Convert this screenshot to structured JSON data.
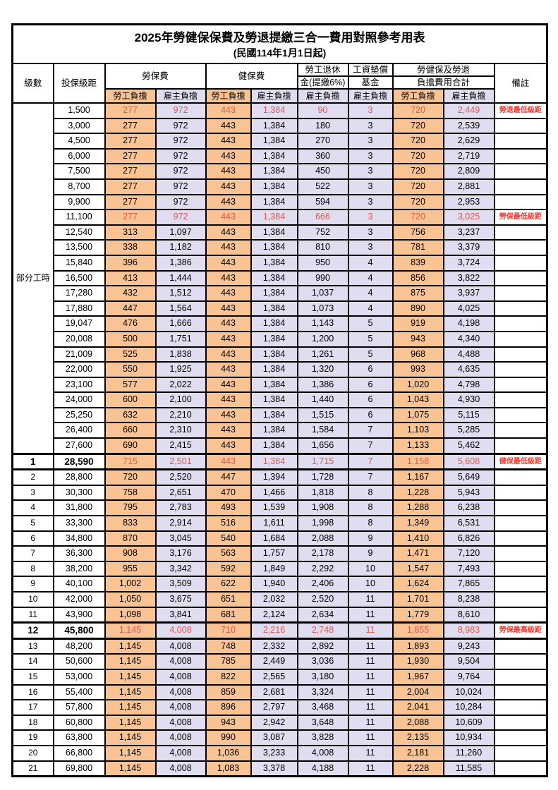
{
  "title": {
    "line1": "2025年勞健保保費及勞退提繳三合一費用對照參考用表",
    "line2": "(民國114年1月1日起)"
  },
  "headers": {
    "level": "級數",
    "bracket": "投保級距",
    "labor_insurance": "勞保費",
    "health_insurance": "健保費",
    "pension_line1": "勞工退休",
    "pension_line2": "金(提繳6%)",
    "wage_fund_line1": "工資墊償",
    "wage_fund_line2": "基金",
    "total_line1": "勞健保及勞退",
    "total_line2": "負擔費用合計",
    "remark": "備註",
    "sub": [
      "勞工負擔",
      "雇主負擔",
      "勞工負擔",
      "雇主負擔",
      "雇主負擔",
      "雇主負擔",
      "勞工負擔",
      "雇主負擔"
    ]
  },
  "part_time_label": "部分工時",
  "part_time_rowspan": 23,
  "colors": {
    "employee_fill": "#FAC393",
    "employer_fill": "#DFDDEF",
    "highlight_value": "#DD5A50",
    "remark_red": "#FF362E"
  },
  "rows": [
    {
      "level": "",
      "bracket": "1,500",
      "values": [
        "277",
        "972",
        "443",
        "1,384",
        "90",
        "3",
        "720",
        "2,449"
      ],
      "remark": "勞退最低級距",
      "red": true,
      "bold": false
    },
    {
      "level": "",
      "bracket": "3,000",
      "values": [
        "277",
        "972",
        "443",
        "1,384",
        "180",
        "3",
        "720",
        "2,539"
      ],
      "remark": "",
      "red": false,
      "bold": false
    },
    {
      "level": "",
      "bracket": "4,500",
      "values": [
        "277",
        "972",
        "443",
        "1,384",
        "270",
        "3",
        "720",
        "2,629"
      ],
      "remark": "",
      "red": false,
      "bold": false
    },
    {
      "level": "",
      "bracket": "6,000",
      "values": [
        "277",
        "972",
        "443",
        "1,384",
        "360",
        "3",
        "720",
        "2,719"
      ],
      "remark": "",
      "red": false,
      "bold": false
    },
    {
      "level": "",
      "bracket": "7,500",
      "values": [
        "277",
        "972",
        "443",
        "1,384",
        "450",
        "3",
        "720",
        "2,809"
      ],
      "remark": "",
      "red": false,
      "bold": false
    },
    {
      "level": "",
      "bracket": "8,700",
      "values": [
        "277",
        "972",
        "443",
        "1,384",
        "522",
        "3",
        "720",
        "2,881"
      ],
      "remark": "",
      "red": false,
      "bold": false
    },
    {
      "level": "",
      "bracket": "9,900",
      "values": [
        "277",
        "972",
        "443",
        "1,384",
        "594",
        "3",
        "720",
        "2,953"
      ],
      "remark": "",
      "red": false,
      "bold": false
    },
    {
      "level": "",
      "bracket": "11,100",
      "values": [
        "277",
        "972",
        "443",
        "1,384",
        "666",
        "3",
        "720",
        "3,025"
      ],
      "remark": "勞保最低級距",
      "red": true,
      "bold": false
    },
    {
      "level": "",
      "bracket": "12,540",
      "values": [
        "313",
        "1,097",
        "443",
        "1,384",
        "752",
        "3",
        "756",
        "3,237"
      ],
      "remark": "",
      "red": false,
      "bold": false
    },
    {
      "level": "",
      "bracket": "13,500",
      "values": [
        "338",
        "1,182",
        "443",
        "1,384",
        "810",
        "3",
        "781",
        "3,379"
      ],
      "remark": "",
      "red": false,
      "bold": false
    },
    {
      "level": "",
      "bracket": "15,840",
      "values": [
        "396",
        "1,386",
        "443",
        "1,384",
        "950",
        "4",
        "839",
        "3,724"
      ],
      "remark": "",
      "red": false,
      "bold": false
    },
    {
      "level": "",
      "bracket": "16,500",
      "values": [
        "413",
        "1,444",
        "443",
        "1,384",
        "990",
        "4",
        "856",
        "3,822"
      ],
      "remark": "",
      "red": false,
      "bold": false
    },
    {
      "level": "",
      "bracket": "17,280",
      "values": [
        "432",
        "1,512",
        "443",
        "1,384",
        "1,037",
        "4",
        "875",
        "3,937"
      ],
      "remark": "",
      "red": false,
      "bold": false
    },
    {
      "level": "",
      "bracket": "17,880",
      "values": [
        "447",
        "1,564",
        "443",
        "1,384",
        "1,073",
        "4",
        "890",
        "4,025"
      ],
      "remark": "",
      "red": false,
      "bold": false
    },
    {
      "level": "",
      "bracket": "19,047",
      "values": [
        "476",
        "1,666",
        "443",
        "1,384",
        "1,143",
        "5",
        "919",
        "4,198"
      ],
      "remark": "",
      "red": false,
      "bold": false
    },
    {
      "level": "",
      "bracket": "20,008",
      "values": [
        "500",
        "1,751",
        "443",
        "1,384",
        "1,200",
        "5",
        "943",
        "4,340"
      ],
      "remark": "",
      "red": false,
      "bold": false
    },
    {
      "level": "",
      "bracket": "21,009",
      "values": [
        "525",
        "1,838",
        "443",
        "1,384",
        "1,261",
        "5",
        "968",
        "4,488"
      ],
      "remark": "",
      "red": false,
      "bold": false
    },
    {
      "level": "",
      "bracket": "22,000",
      "values": [
        "550",
        "1,925",
        "443",
        "1,384",
        "1,320",
        "6",
        "993",
        "4,635"
      ],
      "remark": "",
      "red": false,
      "bold": false
    },
    {
      "level": "",
      "bracket": "23,100",
      "values": [
        "577",
        "2,022",
        "443",
        "1,384",
        "1,386",
        "6",
        "1,020",
        "4,798"
      ],
      "remark": "",
      "red": false,
      "bold": false
    },
    {
      "level": "",
      "bracket": "24,000",
      "values": [
        "600",
        "2,100",
        "443",
        "1,384",
        "1,440",
        "6",
        "1,043",
        "4,930"
      ],
      "remark": "",
      "red": false,
      "bold": false
    },
    {
      "level": "",
      "bracket": "25,250",
      "values": [
        "632",
        "2,210",
        "443",
        "1,384",
        "1,515",
        "6",
        "1,075",
        "5,115"
      ],
      "remark": "",
      "red": false,
      "bold": false
    },
    {
      "level": "",
      "bracket": "26,400",
      "values": [
        "660",
        "2,310",
        "443",
        "1,384",
        "1,584",
        "7",
        "1,103",
        "5,285"
      ],
      "remark": "",
      "red": false,
      "bold": false
    },
    {
      "level": "",
      "bracket": "27,600",
      "values": [
        "690",
        "2,415",
        "443",
        "1,384",
        "1,656",
        "7",
        "1,133",
        "5,462"
      ],
      "remark": "",
      "red": false,
      "bold": false
    },
    {
      "level": "1",
      "bracket": "28,590",
      "values": [
        "715",
        "2,501",
        "443",
        "1,384",
        "1,715",
        "7",
        "1,158",
        "5,608"
      ],
      "remark": "健保最低級距",
      "red": true,
      "bold": true
    },
    {
      "level": "2",
      "bracket": "28,800",
      "values": [
        "720",
        "2,520",
        "447",
        "1,394",
        "1,728",
        "7",
        "1,167",
        "5,649"
      ],
      "remark": "",
      "red": false,
      "bold": false
    },
    {
      "level": "3",
      "bracket": "30,300",
      "values": [
        "758",
        "2,651",
        "470",
        "1,466",
        "1,818",
        "8",
        "1,228",
        "5,943"
      ],
      "remark": "",
      "red": false,
      "bold": false
    },
    {
      "level": "4",
      "bracket": "31,800",
      "values": [
        "795",
        "2,783",
        "493",
        "1,539",
        "1,908",
        "8",
        "1,288",
        "6,238"
      ],
      "remark": "",
      "red": false,
      "bold": false
    },
    {
      "level": "5",
      "bracket": "33,300",
      "values": [
        "833",
        "2,914",
        "516",
        "1,611",
        "1,998",
        "8",
        "1,349",
        "6,531"
      ],
      "remark": "",
      "red": false,
      "bold": false
    },
    {
      "level": "6",
      "bracket": "34,800",
      "values": [
        "870",
        "3,045",
        "540",
        "1,684",
        "2,088",
        "9",
        "1,410",
        "6,826"
      ],
      "remark": "",
      "red": false,
      "bold": false
    },
    {
      "level": "7",
      "bracket": "36,300",
      "values": [
        "908",
        "3,176",
        "563",
        "1,757",
        "2,178",
        "9",
        "1,471",
        "7,120"
      ],
      "remark": "",
      "red": false,
      "bold": false
    },
    {
      "level": "8",
      "bracket": "38,200",
      "values": [
        "955",
        "3,342",
        "592",
        "1,849",
        "2,292",
        "10",
        "1,547",
        "7,493"
      ],
      "remark": "",
      "red": false,
      "bold": false
    },
    {
      "level": "9",
      "bracket": "40,100",
      "values": [
        "1,002",
        "3,509",
        "622",
        "1,940",
        "2,406",
        "10",
        "1,624",
        "7,865"
      ],
      "remark": "",
      "red": false,
      "bold": false
    },
    {
      "level": "10",
      "bracket": "42,000",
      "values": [
        "1,050",
        "3,675",
        "651",
        "2,032",
        "2,520",
        "11",
        "1,701",
        "8,238"
      ],
      "remark": "",
      "red": false,
      "bold": false
    },
    {
      "level": "11",
      "bracket": "43,900",
      "values": [
        "1,098",
        "3,841",
        "681",
        "2,124",
        "2,634",
        "11",
        "1,779",
        "8,610"
      ],
      "remark": "",
      "red": false,
      "bold": false
    },
    {
      "level": "12",
      "bracket": "45,800",
      "values": [
        "1,145",
        "4,008",
        "710",
        "2,216",
        "2,748",
        "11",
        "1,855",
        "8,983"
      ],
      "remark": "勞保最高級距",
      "red": true,
      "bold": true
    },
    {
      "level": "13",
      "bracket": "48,200",
      "values": [
        "1,145",
        "4,008",
        "748",
        "2,332",
        "2,892",
        "11",
        "1,893",
        "9,243"
      ],
      "remark": "",
      "red": false,
      "bold": false
    },
    {
      "level": "14",
      "bracket": "50,600",
      "values": [
        "1,145",
        "4,008",
        "785",
        "2,449",
        "3,036",
        "11",
        "1,930",
        "9,504"
      ],
      "remark": "",
      "red": false,
      "bold": false
    },
    {
      "level": "15",
      "bracket": "53,000",
      "values": [
        "1,145",
        "4,008",
        "822",
        "2,565",
        "3,180",
        "11",
        "1,967",
        "9,764"
      ],
      "remark": "",
      "red": false,
      "bold": false
    },
    {
      "level": "16",
      "bracket": "55,400",
      "values": [
        "1,145",
        "4,008",
        "859",
        "2,681",
        "3,324",
        "11",
        "2,004",
        "10,024"
      ],
      "remark": "",
      "red": false,
      "bold": false
    },
    {
      "level": "17",
      "bracket": "57,800",
      "values": [
        "1,145",
        "4,008",
        "896",
        "2,797",
        "3,468",
        "11",
        "2,041",
        "10,284"
      ],
      "remark": "",
      "red": false,
      "bold": false
    },
    {
      "level": "18",
      "bracket": "60,800",
      "values": [
        "1,145",
        "4,008",
        "943",
        "2,942",
        "3,648",
        "11",
        "2,088",
        "10,609"
      ],
      "remark": "",
      "red": false,
      "bold": false
    },
    {
      "level": "19",
      "bracket": "63,800",
      "values": [
        "1,145",
        "4,008",
        "990",
        "3,087",
        "3,828",
        "11",
        "2,135",
        "10,934"
      ],
      "remark": "",
      "red": false,
      "bold": false
    },
    {
      "level": "20",
      "bracket": "66,800",
      "values": [
        "1,145",
        "4,008",
        "1,036",
        "3,233",
        "4,008",
        "11",
        "2,181",
        "11,260"
      ],
      "remark": "",
      "red": false,
      "bold": false
    },
    {
      "level": "21",
      "bracket": "69,800",
      "values": [
        "1,145",
        "4,008",
        "1,083",
        "3,378",
        "4,188",
        "11",
        "2,228",
        "11,585"
      ],
      "remark": "",
      "red": false,
      "bold": false
    }
  ]
}
